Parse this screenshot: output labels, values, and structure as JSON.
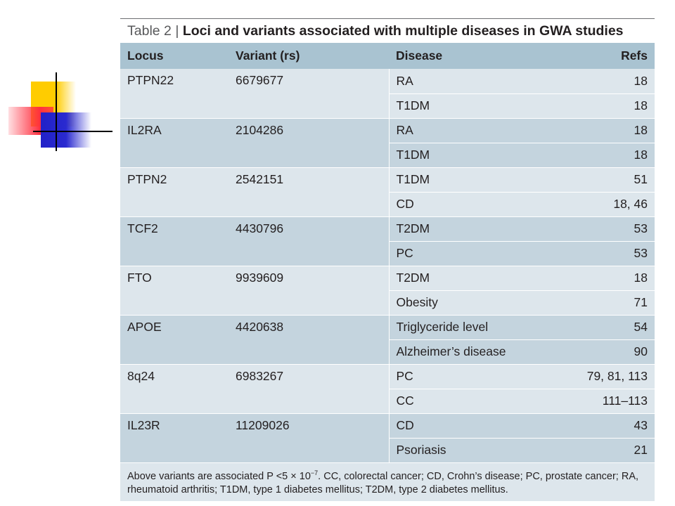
{
  "table": {
    "label": "Table 2",
    "separator": "|",
    "title": "Loci and variants associated with multiple diseases in GWA studies",
    "headers": {
      "locus": "Locus",
      "variant": "Variant (rs)",
      "disease": "Disease",
      "refs": "Refs"
    },
    "groups": [
      {
        "locus": "PTPN22",
        "variant": "6679677",
        "rows": [
          {
            "disease": "RA",
            "refs": "18"
          },
          {
            "disease": "T1DM",
            "refs": "18"
          }
        ]
      },
      {
        "locus": "IL2RA",
        "variant": "2104286",
        "rows": [
          {
            "disease": "RA",
            "refs": "18"
          },
          {
            "disease": "T1DM",
            "refs": "18"
          }
        ]
      },
      {
        "locus": "PTPN2",
        "variant": "2542151",
        "rows": [
          {
            "disease": "T1DM",
            "refs": "51"
          },
          {
            "disease": "CD",
            "refs": "18, 46"
          }
        ]
      },
      {
        "locus": "TCF2",
        "variant": "4430796",
        "rows": [
          {
            "disease": "T2DM",
            "refs": "53"
          },
          {
            "disease": "PC",
            "refs": "53"
          }
        ]
      },
      {
        "locus": "FTO",
        "variant": "9939609",
        "rows": [
          {
            "disease": "T2DM",
            "refs": "18"
          },
          {
            "disease": "Obesity",
            "refs": "71"
          }
        ]
      },
      {
        "locus": "APOE",
        "variant": "4420638",
        "rows": [
          {
            "disease": "Triglyceride level",
            "refs": "54"
          },
          {
            "disease": "Alzheimer’s disease",
            "refs": "90"
          }
        ]
      },
      {
        "locus": "8q24",
        "variant": "6983267",
        "rows": [
          {
            "disease": "PC",
            "refs": "79, 81, 113"
          },
          {
            "disease": "CC",
            "refs": "111–113"
          }
        ]
      },
      {
        "locus": "IL23R",
        "variant": "11209026",
        "rows": [
          {
            "disease": "CD",
            "refs": "43"
          },
          {
            "disease": "Psoriasis",
            "refs": "21"
          }
        ]
      }
    ],
    "footnote": {
      "part1": "Above variants are associated P <5 × 10",
      "exponent": "−7",
      "part2": ". CC, colorectal cancer; CD, Crohn’s disease; PC, prostate cancer; RA, rheumatoid arthritis; T1DM, type 1 diabetes mellitus; T2DM, type 2 diabetes mellitus."
    }
  },
  "colors": {
    "header_bg": "#a9c3d1",
    "row_light": "#dde6ec",
    "row_dark": "#c4d4de",
    "deco_yellow": "#ffcc00",
    "deco_red": "#ff3040",
    "deco_blue": "#2121c8"
  }
}
